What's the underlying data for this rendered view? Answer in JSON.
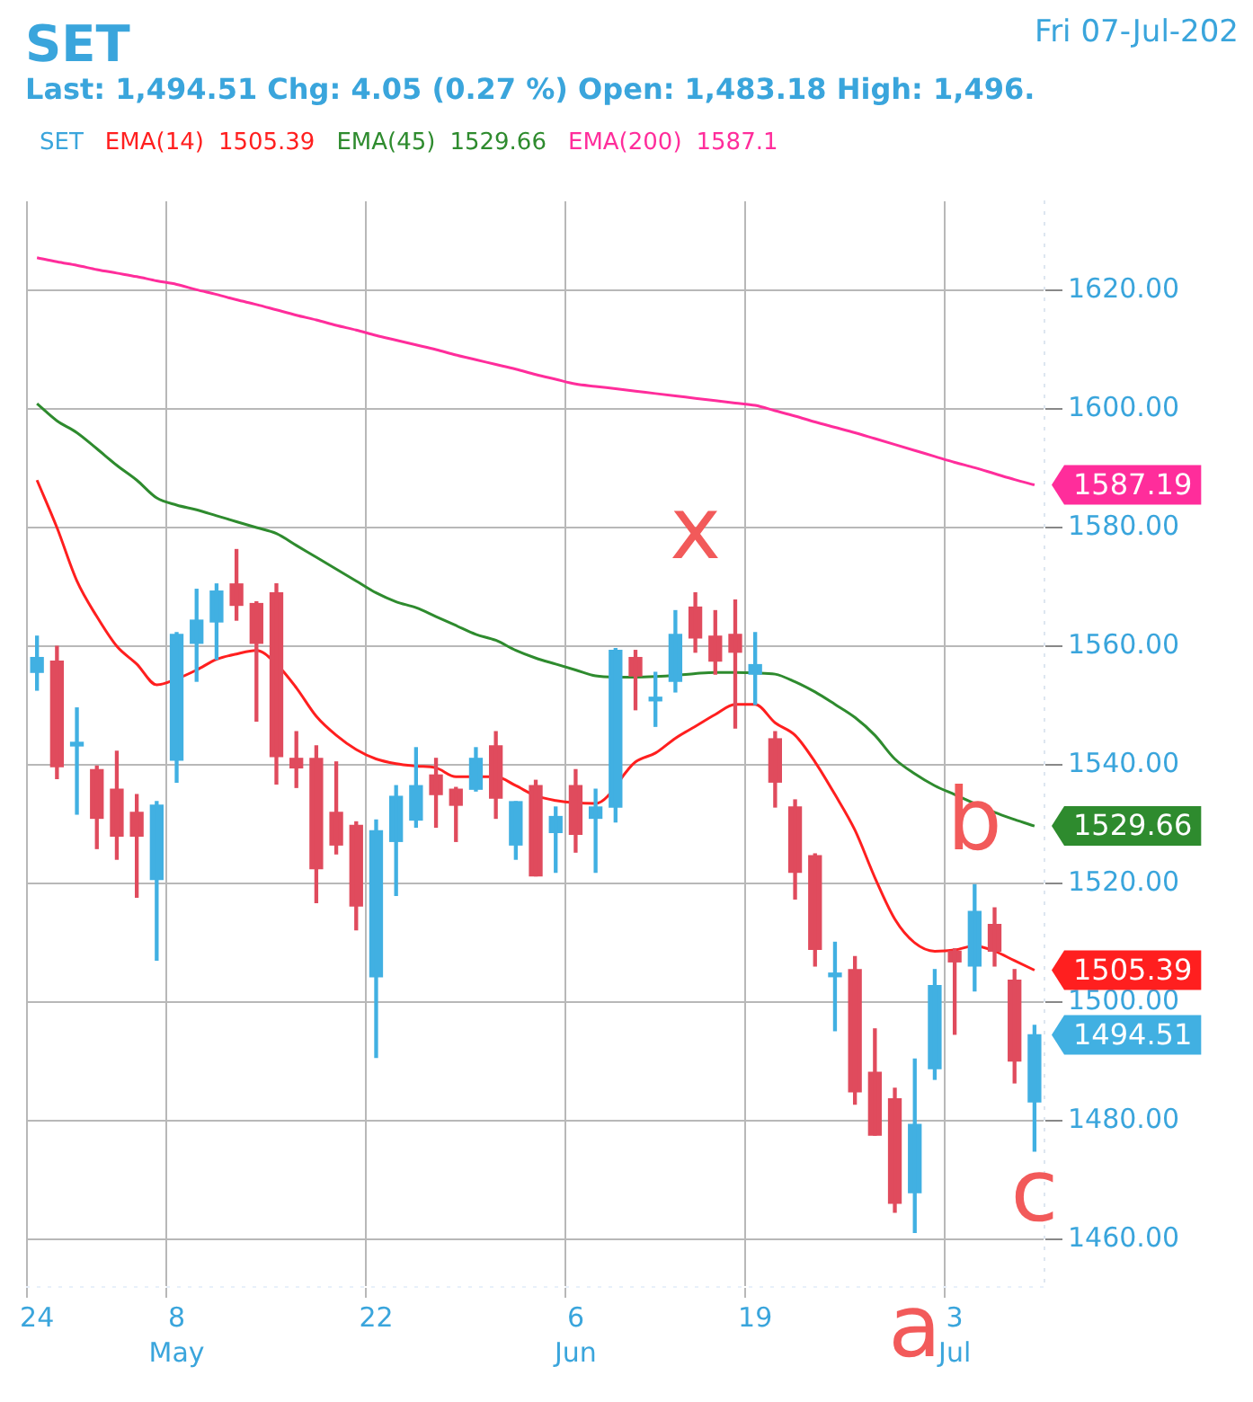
{
  "chart_data": {
    "type": "candlestick",
    "title": "SET",
    "subtitle": "Last: 1,494.51 Chg: 4.05 (0.27 %) Open: 1,483.18 High: 1,496.",
    "annotations": [
      "Fri 07-Jul-202",
      "1505.39",
      "1529.66",
      "1587.1",
      "1587.19",
      "1529.66",
      "1505.39",
      "1494.51",
      "x",
      "b",
      "a",
      "c",
      "May",
      "Jun",
      "Jul"
    ],
    "categories": [
      "24",
      null,
      null,
      null,
      null,
      null,
      null,
      "8",
      null,
      null,
      null,
      null,
      null,
      null,
      null,
      null,
      null,
      "22",
      null,
      null,
      null,
      null,
      null,
      null,
      null,
      null,
      null,
      "6",
      null,
      null,
      null,
      null,
      null,
      null,
      null,
      null,
      "19",
      null,
      null,
      null,
      null,
      null,
      null,
      null,
      null,
      null,
      "3",
      null,
      null,
      null,
      null
    ],
    "series": [
      {
        "name": "SET",
        "ohlc": [
          [
            1555.6,
            1561.7,
            1552.6,
            1558.1
          ],
          [
            1557.5,
            1560,
            1537.7,
            1539.7
          ],
          [
            1543.2,
            1549.6,
            1531.7,
            1543.8
          ],
          [
            1539.2,
            1539.8,
            1525.9,
            1531
          ],
          [
            1535.9,
            1542.3,
            1524.1,
            1528
          ],
          [
            1532,
            1535,
            1517.7,
            1528
          ],
          [
            1520.7,
            1533.8,
            1507.1,
            1533.2
          ],
          [
            1540.8,
            1562.3,
            1537.1,
            1562
          ],
          [
            1560.5,
            1569.6,
            1554.1,
            1564.4
          ],
          [
            1564.1,
            1570.5,
            1557.8,
            1569.3
          ],
          [
            1570.5,
            1576.3,
            1564.4,
            1566.9
          ],
          [
            1567.2,
            1567.5,
            1547.4,
            1560.5
          ],
          [
            1569,
            1570.5,
            1536.8,
            1541.4
          ],
          [
            1541.1,
            1545.6,
            1536.2,
            1539.5
          ],
          [
            1541.1,
            1543.2,
            1516.8,
            1522.5
          ],
          [
            1532,
            1540.5,
            1525,
            1526.5
          ],
          [
            1529.8,
            1530.4,
            1512.2,
            1516.2
          ],
          [
            1504.3,
            1530.7,
            1490.7,
            1528.9
          ],
          [
            1527.1,
            1536.5,
            1518,
            1534.7
          ],
          [
            1530.7,
            1542.9,
            1529.5,
            1536.5
          ],
          [
            1538.3,
            1541.1,
            1529.5,
            1535
          ],
          [
            1535.9,
            1536.2,
            1527.1,
            1533.2
          ],
          [
            1535.9,
            1542.9,
            1535.6,
            1541.1
          ],
          [
            1543.2,
            1545.6,
            1531,
            1534.4
          ],
          [
            1526.5,
            1533.8,
            1524.1,
            1533.8
          ],
          [
            1536.5,
            1537.4,
            1521.3,
            1521.3
          ],
          [
            1528.6,
            1532.9,
            1521.9,
            1531.3
          ],
          [
            1536.5,
            1539.2,
            1525.3,
            1528.3
          ],
          [
            1531,
            1535.9,
            1521.9,
            1532.9
          ],
          [
            1532.9,
            1559.6,
            1530.4,
            1559.3
          ],
          [
            1558.1,
            1559.3,
            1549.3,
            1555
          ],
          [
            1550.8,
            1555.6,
            1546.5,
            1551.4
          ],
          [
            1554.1,
            1566,
            1552.3,
            1562
          ],
          [
            1566.6,
            1569,
            1559,
            1561.4
          ],
          [
            1561.7,
            1566,
            1555.3,
            1557.5
          ],
          [
            1562,
            1567.8,
            1546.2,
            1559
          ],
          [
            1555.3,
            1562.3,
            1550.2,
            1556.9
          ],
          [
            1544.4,
            1545.6,
            1532.9,
            1537.1
          ],
          [
            1532.9,
            1534.1,
            1517.4,
            1521.9
          ],
          [
            1524.7,
            1525,
            1506.1,
            1508.9
          ],
          [
            1504.3,
            1510.1,
            1495.2,
            1504.9
          ],
          [
            1505.5,
            1507.7,
            1482.8,
            1484.9
          ],
          [
            1488.2,
            1495.5,
            1477.6,
            1477.6
          ],
          [
            1483.7,
            1485.5,
            1464.6,
            1466.1
          ],
          [
            1467.9,
            1490.4,
            1461.2,
            1479.4
          ],
          [
            1488.8,
            1505.5,
            1487,
            1502.8
          ],
          [
            1508.6,
            1509,
            1494.6,
            1506.8
          ],
          [
            1506.1,
            1519.8,
            1501.9,
            1515.3
          ],
          [
            1513.1,
            1515.9,
            1506.1,
            1508.6
          ],
          [
            1503.7,
            1505.5,
            1486.4,
            1490.1
          ],
          [
            1483.18,
            1496.1,
            1474.9,
            1494.51
          ]
        ],
        "colors": [
          "#41b0e2",
          "#e04b5d",
          "#41b0e2",
          "#e04b5d",
          "#e04b5d",
          "#e04b5d",
          "#41b0e2",
          "#41b0e2",
          "#41b0e2",
          "#41b0e2",
          "#e04b5d",
          "#e04b5d",
          "#e04b5d",
          "#e04b5d",
          "#e04b5d",
          "#e04b5d",
          "#e04b5d",
          "#41b0e2",
          "#41b0e2",
          "#41b0e2",
          "#e04b5d",
          "#e04b5d",
          "#41b0e2",
          "#e04b5d",
          "#41b0e2",
          "#e04b5d",
          "#41b0e2",
          "#e04b5d",
          "#41b0e2",
          "#41b0e2",
          "#e04b5d",
          "#41b0e2",
          "#41b0e2",
          "#e04b5d",
          "#e04b5d",
          "#e04b5d",
          "#41b0e2",
          "#e04b5d",
          "#e04b5d",
          "#e04b5d",
          "#41b0e2",
          "#e04b5d",
          "#e04b5d",
          "#e04b5d",
          "#41b0e2",
          "#41b0e2",
          "#e04b5d",
          "#41b0e2",
          "#e04b5d",
          "#e04b5d",
          "#41b0e2"
        ]
      },
      {
        "name": "EMA(14)",
        "type": "line",
        "color": "#ff1f1f",
        "values": [
          1588,
          1580,
          1571,
          1565,
          1560,
          1557,
          1553.5,
          1554.5,
          1556,
          1557.8,
          1558.7,
          1559.3,
          1557,
          1553,
          1548.2,
          1545,
          1542.6,
          1541,
          1540.2,
          1539.8,
          1539.5,
          1538,
          1538,
          1538,
          1536.5,
          1534.8,
          1534,
          1533.6,
          1533.5,
          null,
          1540.5,
          1542,
          1544.5,
          1546.5,
          1548.5,
          1550.2,
          1550.2,
          1547.1,
          1545,
          1540.5,
          1535,
          1529,
          1521,
          1514,
          1510,
          1508.6,
          1508.8,
          1509.5,
          1508.6,
          1507,
          1505.4
        ]
      },
      {
        "name": "EMA(45)",
        "type": "line",
        "color": "#2e8b2e",
        "values": [
          1600.9,
          1598,
          1596,
          1593.3,
          1590.5,
          1588,
          1585,
          1583.8,
          1583,
          1582,
          1581,
          1580,
          1579,
          1577,
          1575,
          1573,
          1571,
          1569,
          1567.5,
          1566.5,
          1565,
          1563.5,
          1562,
          1561,
          1559.3,
          1558,
          1557,
          1556,
          1555,
          1554.8,
          1554.8,
          1554.9,
          1555.1,
          1555.4,
          1555.6,
          1555.6,
          1555.5,
          1555.3,
          1554,
          1552.3,
          1550.2,
          1548,
          1545,
          1541,
          1538.5,
          1536.5,
          1535,
          1533.5,
          1532,
          1530.8,
          1529.7
        ]
      },
      {
        "name": "EMA(200)",
        "type": "line",
        "color": "#ff2d9b",
        "values": [
          1625.5,
          1624.8,
          1624.2,
          1623.5,
          1622.9,
          1622.3,
          1621.6,
          1621,
          1620.1,
          1619.3,
          1618.4,
          1617.6,
          1616.7,
          1615.8,
          1615,
          1614.1,
          1613.3,
          1612.4,
          1611.6,
          1610.8,
          1610,
          1609.1,
          1608.3,
          1607.5,
          1606.7,
          1605.8,
          1605,
          1604.2,
          1603.8,
          1603.4,
          1603,
          1602.6,
          1602.2,
          1601.8,
          1601.4,
          1601,
          1600.6,
          1599.7,
          1598.8,
          1597.8,
          1596.9,
          1596,
          1595,
          1594,
          1593,
          1592,
          1591,
          1590.1,
          1589.1,
          1588.1,
          1587.2
        ]
      }
    ],
    "ylim": [
      1452,
      1635
    ],
    "yticks": [
      {
        "value": 1460,
        "label": "1460.00"
      },
      {
        "value": 1480,
        "label": "1480.00"
      },
      {
        "value": 1500,
        "label": "1500.00"
      },
      {
        "value": 1520,
        "label": "1520.00"
      },
      {
        "value": 1540,
        "label": "1540.00"
      },
      {
        "value": 1560,
        "label": "1560.00"
      },
      {
        "value": 1580,
        "label": "1580.00"
      },
      {
        "value": 1600,
        "label": "1600.00"
      },
      {
        "value": 1620,
        "label": "1620.00"
      }
    ],
    "grid": true,
    "legend": "top left",
    "marker": "none"
  }
}
